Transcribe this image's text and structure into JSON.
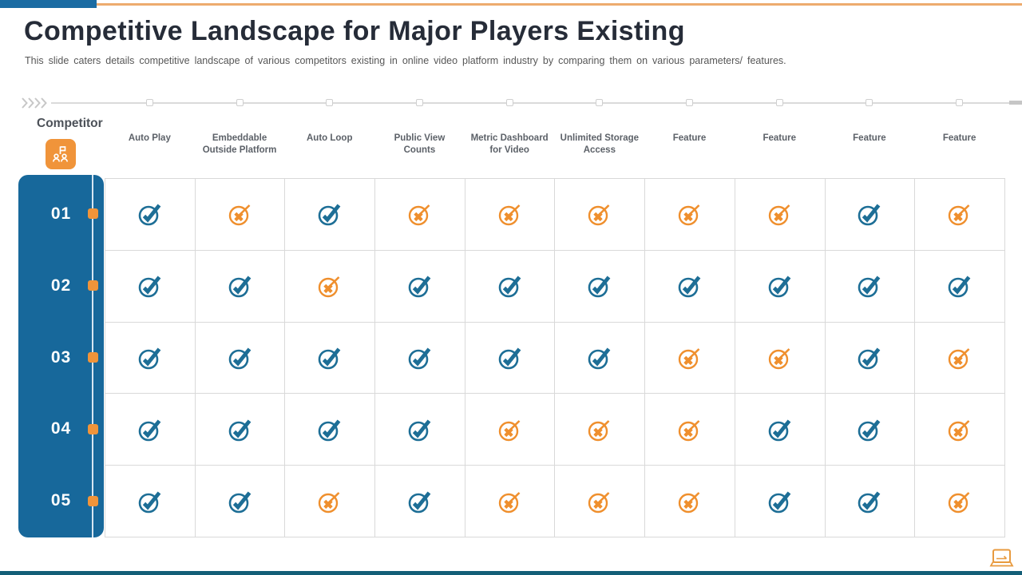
{
  "slide": {
    "title": "Competitive Landscape for Major Players Existing",
    "subtitle": "This slide caters details competitive landscape of various competitors existing in online video platform industry by comparing them on various parameters/ features."
  },
  "table": {
    "row_axis_label": "Competitor",
    "columns": [
      "Auto Play",
      "Embeddable Outside Platform",
      "Auto Loop",
      "Public View Counts",
      "Metric Dashboard for Video",
      "Unlimited Storage Access",
      "Feature",
      "Feature",
      "Feature",
      "Feature"
    ],
    "rows": [
      {
        "label": "01",
        "values": [
          "yes",
          "no",
          "yes",
          "no",
          "no",
          "no",
          "no",
          "no",
          "yes",
          "no"
        ]
      },
      {
        "label": "02",
        "values": [
          "yes",
          "yes",
          "no",
          "yes",
          "yes",
          "yes",
          "yes",
          "yes",
          "yes",
          "yes"
        ]
      },
      {
        "label": "03",
        "values": [
          "yes",
          "yes",
          "yes",
          "yes",
          "yes",
          "yes",
          "no",
          "no",
          "yes",
          "no"
        ]
      },
      {
        "label": "04",
        "values": [
          "yes",
          "yes",
          "yes",
          "yes",
          "no",
          "no",
          "no",
          "yes",
          "yes",
          "no"
        ]
      },
      {
        "label": "05",
        "values": [
          "yes",
          "yes",
          "no",
          "yes",
          "no",
          "no",
          "no",
          "yes",
          "yes",
          "no"
        ]
      }
    ],
    "value_icons": {
      "yes": "check-circle-icon",
      "no": "cross-circle-icon"
    }
  },
  "icons": {
    "competitor": "org-team-flag-icon",
    "timeline_start": "chevrons-right-icon",
    "bottom_right": "laptop-icon"
  },
  "colors": {
    "accent_blue": "#1b6ca3",
    "panel_blue": "#17689b",
    "accent_orange": "#f0943a",
    "topline_orange": "#edab6e",
    "check_blue": "#1d6e96",
    "cross_orange": "#ef8f2d",
    "grid_line": "#d9d9d9",
    "bottom_bar": "#135f77"
  }
}
